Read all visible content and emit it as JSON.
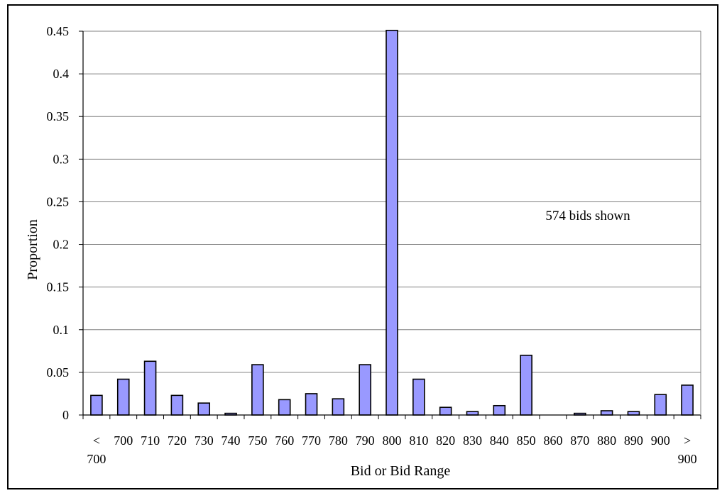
{
  "chart_data": {
    "type": "bar",
    "categories": [
      [
        "<",
        "700"
      ],
      [
        "700"
      ],
      [
        "710"
      ],
      [
        "720"
      ],
      [
        "730"
      ],
      [
        "740"
      ],
      [
        "750"
      ],
      [
        "760"
      ],
      [
        "770"
      ],
      [
        "780"
      ],
      [
        "790"
      ],
      [
        "800"
      ],
      [
        "810"
      ],
      [
        "820"
      ],
      [
        "830"
      ],
      [
        "840"
      ],
      [
        "850"
      ],
      [
        "860"
      ],
      [
        "870"
      ],
      [
        "880"
      ],
      [
        "890"
      ],
      [
        "900"
      ],
      [
        ">",
        "900"
      ]
    ],
    "values": [
      0.023,
      0.042,
      0.063,
      0.023,
      0.014,
      0.002,
      0.059,
      0.018,
      0.025,
      0.019,
      0.059,
      0.451,
      0.042,
      0.009,
      0.004,
      0.011,
      0.07,
      0.0,
      0.002,
      0.005,
      0.004,
      0.024,
      0.035
    ],
    "title": "",
    "xlabel": "Bid or Bid Range",
    "ylabel": "Proportion",
    "ylim": [
      0,
      0.45
    ],
    "yticks": [
      "0",
      "0.05",
      "0.1",
      "0.15",
      "0.2",
      "0.25",
      "0.3",
      "0.35",
      "0.4",
      "0.45"
    ],
    "grid": true,
    "legend": "none",
    "annotation": "574 bids shown",
    "bar_color": "#9999ff",
    "bar_edge_color": "#000000"
  }
}
